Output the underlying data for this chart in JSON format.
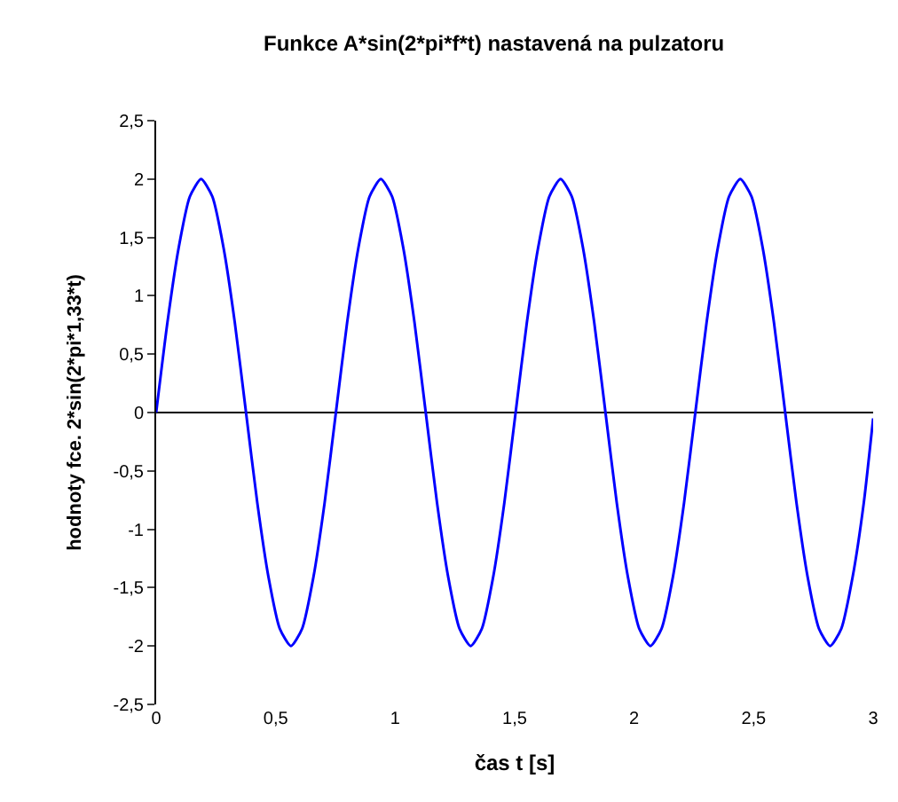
{
  "chart_data": {
    "type": "line",
    "title": "Funkce A*sin(2*pi*f*t) nastavená na pulzatoru",
    "xlabel": "čas t [s]",
    "ylabel": "hodnoty fce. 2*sin(2*pi*1,33*t)",
    "x": [
      0,
      0.047,
      0.094,
      0.141,
      0.188,
      0.235,
      0.282,
      0.329,
      0.376,
      0.423,
      0.47,
      0.517,
      0.564,
      0.611,
      0.658,
      0.705,
      0.752,
      0.799,
      0.846,
      0.893,
      0.94,
      0.987,
      1.034,
      1.081,
      1.128,
      1.175,
      1.222,
      1.269,
      1.316,
      1.363,
      1.41,
      1.457,
      1.504,
      1.551,
      1.598,
      1.645,
      1.692,
      1.739,
      1.786,
      1.833,
      1.88,
      1.927,
      1.974,
      2.021,
      2.068,
      2.115,
      2.162,
      2.209,
      2.256,
      2.303,
      2.35,
      2.397,
      2.444,
      2.491,
      2.538,
      2.585,
      2.632,
      2.679,
      2.726,
      2.773,
      2.82,
      2.867,
      2.914,
      2.961,
      3.0
    ],
    "series": [
      {
        "color": "#0000ff",
        "values": [
          0,
          0.77,
          1.41,
          1.85,
          2,
          1.85,
          1.41,
          0.77,
          0,
          -0.77,
          -1.41,
          -1.85,
          -2,
          -1.85,
          -1.41,
          -0.77,
          0,
          0.77,
          1.41,
          1.85,
          2,
          1.85,
          1.41,
          0.77,
          0,
          -0.77,
          -1.41,
          -1.85,
          -2,
          -1.85,
          -1.41,
          -0.77,
          0,
          0.77,
          1.41,
          1.85,
          2,
          1.85,
          1.41,
          0.77,
          0,
          -0.77,
          -1.41,
          -1.85,
          -2,
          -1.85,
          -1.41,
          -0.77,
          0,
          0.77,
          1.41,
          1.85,
          2,
          1.85,
          1.41,
          0.77,
          0,
          -0.77,
          -1.41,
          -1.85,
          -2,
          -1.85,
          -1.41,
          -0.77,
          -0.05
        ]
      }
    ],
    "xlim": [
      0,
      3
    ],
    "xticks": [
      0,
      {
        "value": 0.5,
        "label": "0,5"
      },
      1,
      {
        "value": 1.5,
        "label": "1,5"
      },
      2,
      {
        "value": 2.5,
        "label": "2,5"
      },
      3
    ],
    "ylim": [
      -2.5,
      2.5
    ],
    "yticks": [
      {
        "value": -2.5,
        "label": "-2,5"
      },
      -2,
      {
        "value": -1.5,
        "label": "-1,5"
      },
      -1,
      {
        "value": -0.5,
        "label": "-0,5"
      },
      0,
      {
        "value": 0.5,
        "label": "0,5"
      },
      1,
      {
        "value": 1.5,
        "label": "1,5"
      },
      2,
      {
        "value": 2.5,
        "label": "2,5"
      }
    ],
    "ref_lines": [
      {
        "axis": "y",
        "value": 0,
        "color": "#000000",
        "line_style": "solid"
      }
    ],
    "grid": false,
    "marker": "none",
    "line_style": "solid"
  }
}
